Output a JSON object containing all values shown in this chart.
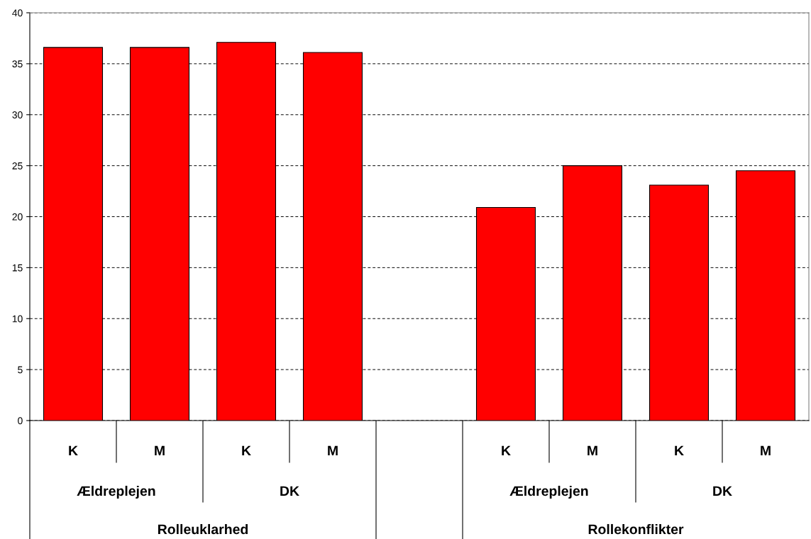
{
  "chart_data": {
    "type": "bar",
    "categories": [
      "K",
      "M",
      "K",
      "M",
      null,
      "K",
      "M",
      "K",
      "M"
    ],
    "values": [
      36.6,
      36.6,
      37.1,
      36.1,
      null,
      20.9,
      25.0,
      23.1,
      24.5
    ],
    "color": "#ff0000",
    "ylim": [
      0,
      40
    ],
    "yticks": [
      0,
      5,
      10,
      15,
      20,
      25,
      30,
      35,
      40
    ],
    "grid": "y",
    "line_style": "dashed",
    "annotations": [
      "Ældreplejen",
      "DK",
      "Ældreplejen",
      "DK",
      "Rolleuklarhed",
      "Rollekonflikter"
    ]
  }
}
